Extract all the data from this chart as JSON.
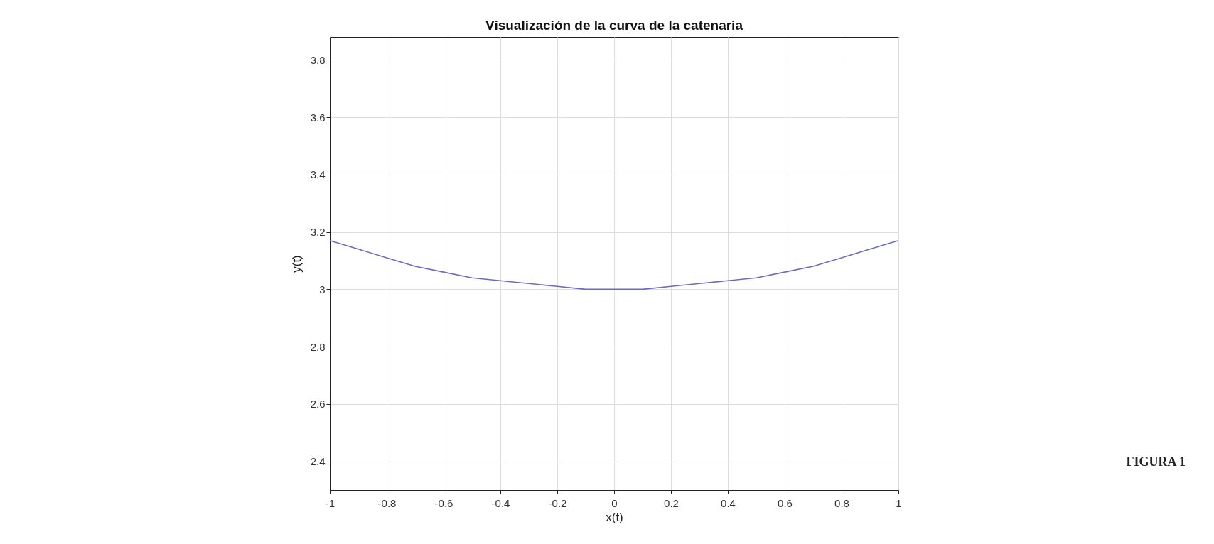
{
  "chart_data": {
    "type": "line",
    "title": "Visualización de la curva de la catenaria",
    "xlabel": "x(t)",
    "ylabel": "y(t)",
    "x": [
      -1,
      -0.9,
      -0.8,
      -0.7,
      -0.6,
      -0.5,
      -0.4,
      -0.3,
      -0.2,
      -0.1,
      0,
      0.1,
      0.2,
      0.3,
      0.4,
      0.5,
      0.6,
      0.7,
      0.8,
      0.9,
      1
    ],
    "series": [
      {
        "color": "#6b6bc4",
        "values": [
          3.17,
          3.14,
          3.11,
          3.08,
          3.06,
          3.04,
          3.03,
          3.02,
          3.01,
          3.0,
          3.0,
          3.0,
          3.01,
          3.02,
          3.03,
          3.04,
          3.06,
          3.08,
          3.11,
          3.14,
          3.17
        ]
      }
    ],
    "xlim": [
      -1,
      1
    ],
    "xticks": [
      -1,
      -0.8,
      -0.6,
      -0.4,
      -0.2,
      0,
      0.2,
      0.4,
      0.6,
      0.8,
      1
    ],
    "ylim": [
      2.3,
      3.88
    ],
    "yticks": [
      2.4,
      2.6,
      2.8,
      3,
      3.2,
      3.4,
      3.6,
      3.8
    ],
    "grid": true,
    "legend": false,
    "marker": "none",
    "line_style": "solid",
    "annotations": [
      "FIGURA 1"
    ]
  }
}
